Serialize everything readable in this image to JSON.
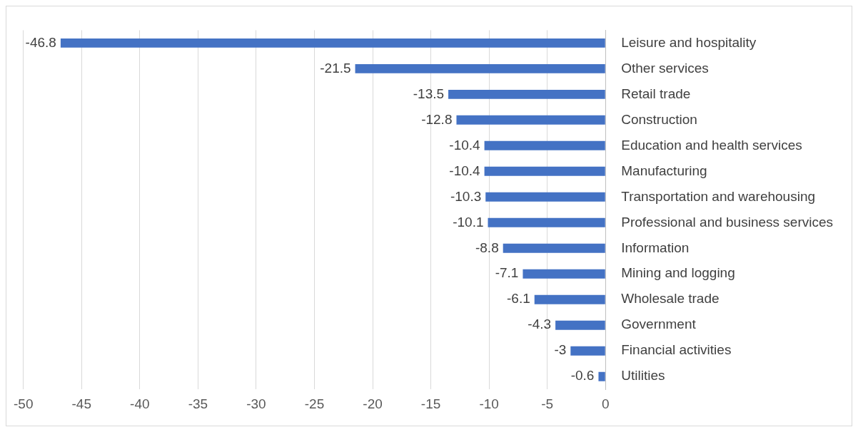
{
  "chart_data": {
    "type": "bar",
    "orientation": "horizontal",
    "categories": [
      "Leisure and hospitality",
      "Other services",
      "Retail trade",
      "Construction",
      "Education and health services",
      "Manufacturing",
      "Transportation and warehousing",
      "Professional and business services",
      "Information",
      "Mining and logging",
      "Wholesale trade",
      "Government",
      "Financial activities",
      "Utilities"
    ],
    "values": [
      -46.8,
      -21.5,
      -13.5,
      -12.8,
      -10.4,
      -10.4,
      -10.3,
      -10.1,
      -8.8,
      -7.1,
      -6.1,
      -4.3,
      -3,
      -0.6
    ],
    "color": "#4472c4",
    "xlim": [
      -50,
      0
    ],
    "xticks": [
      -50,
      -45,
      -40,
      -35,
      -30,
      -25,
      -20,
      -15,
      -10,
      -5,
      0
    ],
    "grid": "x",
    "data_labels": true,
    "legend": false
  }
}
